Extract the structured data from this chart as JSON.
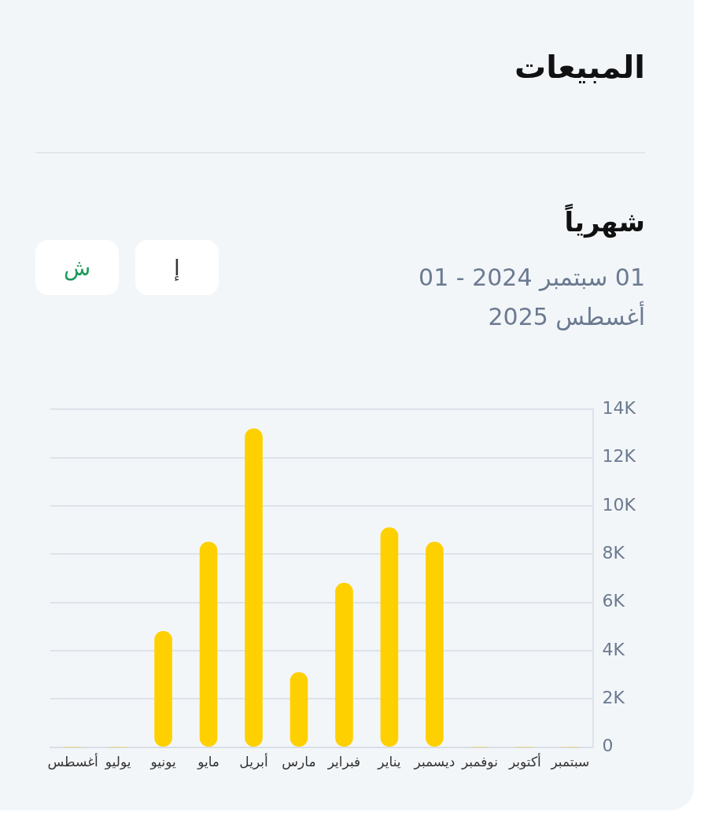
{
  "chart_data": {
    "type": "bar",
    "title": "المبيعات",
    "subtitle": "شهرياً",
    "annotations": [
      "01 سبتمبر 2024 - 01 أغسطس 2025",
      "إ",
      "ش"
    ],
    "categories": [
      "أغسطس",
      "يوليو",
      "يونيو",
      "مايو",
      "أبريل",
      "مارس",
      "فبراير",
      "يناير",
      "ديسمبر",
      "نوفمبر",
      "أكتوبر",
      "سبتمبر"
    ],
    "values": [
      0,
      0,
      4800,
      8500,
      13200,
      3100,
      6800,
      9100,
      8500,
      0,
      0,
      0
    ],
    "color": "#ffd000",
    "ylim": [
      0,
      14000
    ],
    "yticks": [
      0,
      {
        "value": 2000,
        "label": "2K"
      },
      {
        "value": 4000,
        "label": "4K"
      },
      {
        "value": 6000,
        "label": "6K"
      },
      {
        "value": 8000,
        "label": "8K"
      },
      {
        "value": 10000,
        "label": "10K"
      },
      {
        "value": 12000,
        "label": "12K"
      },
      {
        "value": 14000,
        "label": "14K"
      }
    ],
    "grid": "y",
    "legend": false
  }
}
